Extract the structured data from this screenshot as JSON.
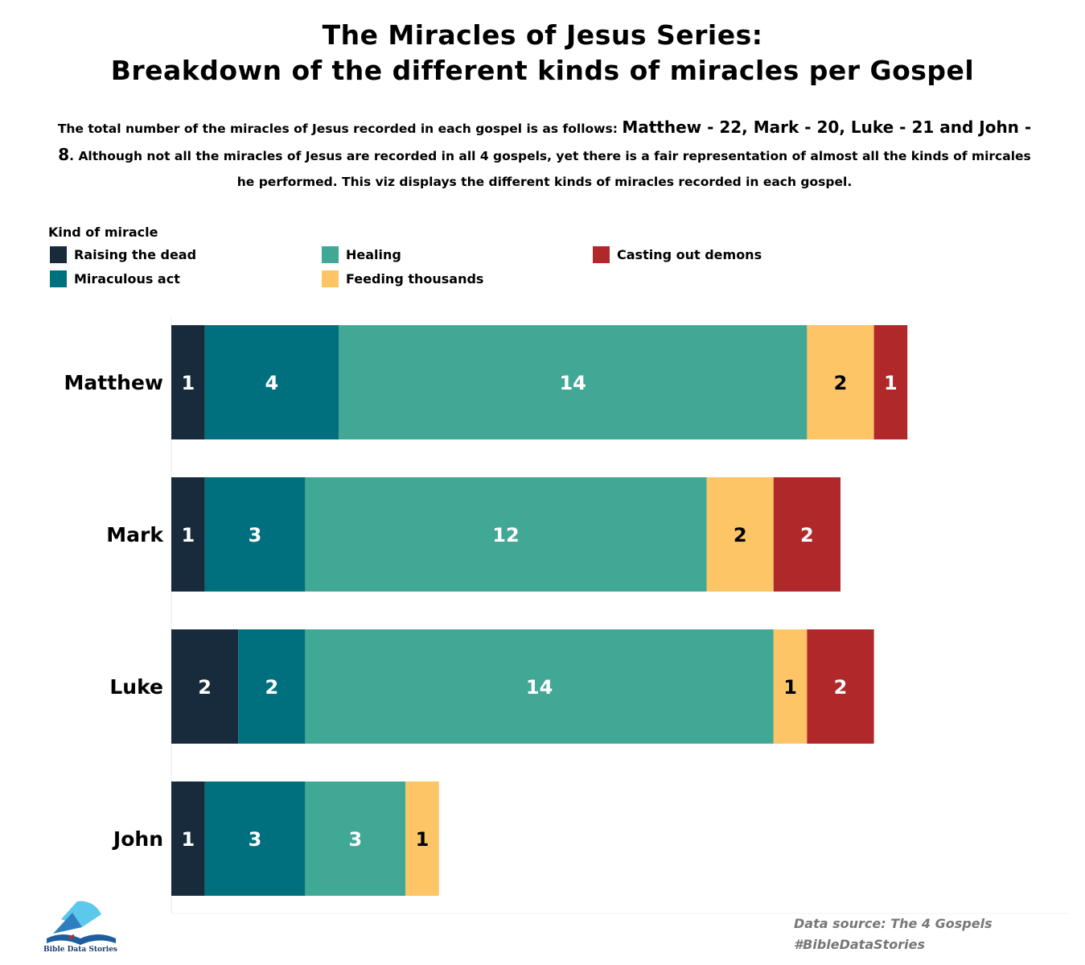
{
  "header": {
    "title_line1": "The Miracles of Jesus Series:",
    "title_line2": "Breakdown of the different kinds of miracles per Gospel",
    "subtitle_part1": "The total number of the miracles of Jesus recorded in each gospel is as follows: ",
    "subtitle_big": "Matthew - 22, Mark - 20, Luke - 21 and John - 8",
    "subtitle_part2": ". Although not all the miracles of Jesus are recorded in all 4 gospels, yet there is a fair representation of almost all the kinds of mircales he performed. This viz displays the different kinds of miracles recorded in each gospel."
  },
  "legend": {
    "title": "Kind of miracle",
    "items": [
      {
        "label": "Raising the dead",
        "color": "#172b3d"
      },
      {
        "label": "Healing",
        "color": "#41a896"
      },
      {
        "label": "Casting out demons",
        "color": "#b0282a"
      },
      {
        "label": "Miraculous act",
        "color": "#00707f"
      },
      {
        "label": "Feeding thousands",
        "color": "#fdc566"
      }
    ]
  },
  "chart_data": {
    "type": "bar",
    "orientation": "horizontal",
    "stacked": true,
    "categories": [
      "Matthew",
      "Mark",
      "Luke",
      "John"
    ],
    "series": [
      {
        "name": "Raising the dead",
        "color": "#172b3d",
        "label_color": "#ffffff",
        "values": [
          1,
          1,
          2,
          1
        ]
      },
      {
        "name": "Miraculous act",
        "color": "#00707f",
        "label_color": "#ffffff",
        "values": [
          4,
          3,
          2,
          3
        ]
      },
      {
        "name": "Healing",
        "color": "#41a896",
        "label_color": "#ffffff",
        "values": [
          14,
          12,
          14,
          3
        ]
      },
      {
        "name": "Feeding thousands",
        "color": "#fdc566",
        "label_color": "#000000",
        "values": [
          2,
          2,
          1,
          1
        ]
      },
      {
        "name": "Casting out demons",
        "color": "#b0282a",
        "label_color": "#ffffff",
        "values": [
          1,
          2,
          2,
          0
        ]
      }
    ],
    "grid": false,
    "legend_position": "top-left"
  },
  "footer": {
    "source": "Data source: The 4 Gospels",
    "hashtag": "#BibleDataStories",
    "logo_text": "Bible Data Stories"
  }
}
